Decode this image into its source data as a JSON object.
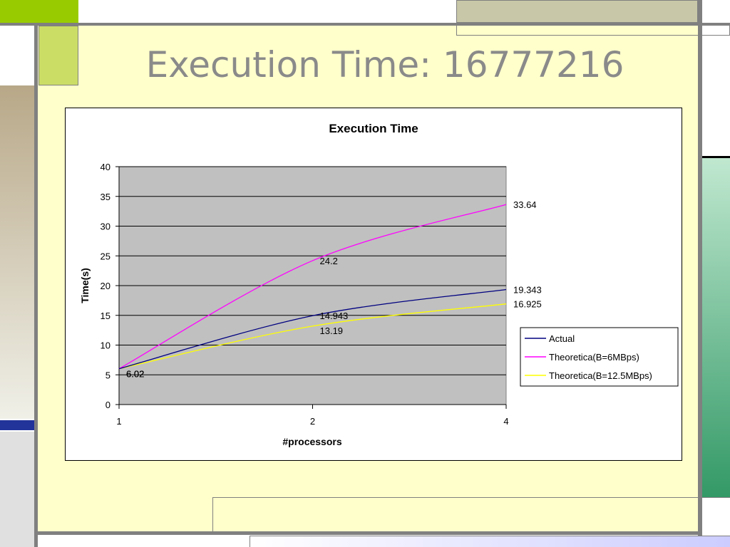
{
  "slide": {
    "title": "Execution Time: 16777216"
  },
  "colors": {
    "slide_bg": "#ffffcc",
    "plot_bg": "#c0c0c0",
    "lime": "#ccdd66",
    "lime_bright": "#99cc00",
    "khaki": "#c8c8a8",
    "tan": "#b0a080",
    "navy": "#223399",
    "green": "#339966",
    "frame_gray": "#808080"
  },
  "chart_data": {
    "type": "line",
    "title": "Execution Time",
    "xlabel": "#processors",
    "ylabel": "Time(s)",
    "categories": [
      "1",
      "2",
      "4"
    ],
    "ylim": [
      0,
      40
    ],
    "yticks": [
      "0",
      "5",
      "10",
      "15",
      "20",
      "25",
      "30",
      "35",
      "40"
    ],
    "grid": true,
    "legend_position": "right",
    "series": [
      {
        "name": "Actual",
        "values": [
          6.02,
          14.943,
          19.343
        ],
        "labels": [
          "6.02",
          "14.943",
          "19.343"
        ],
        "color": "#000080"
      },
      {
        "name": "Theoretica(B=6MBps)",
        "values": [
          6.02,
          24.2,
          33.64
        ],
        "labels": [
          "6.02",
          "24.2",
          "33.64"
        ],
        "color": "#ff00ff"
      },
      {
        "name": "Theoretica(B=12.5MBps)",
        "values": [
          6.02,
          13.19,
          16.925
        ],
        "labels": [
          "6.02",
          "13.19",
          "16.925"
        ],
        "color": "#ffff00"
      }
    ]
  }
}
